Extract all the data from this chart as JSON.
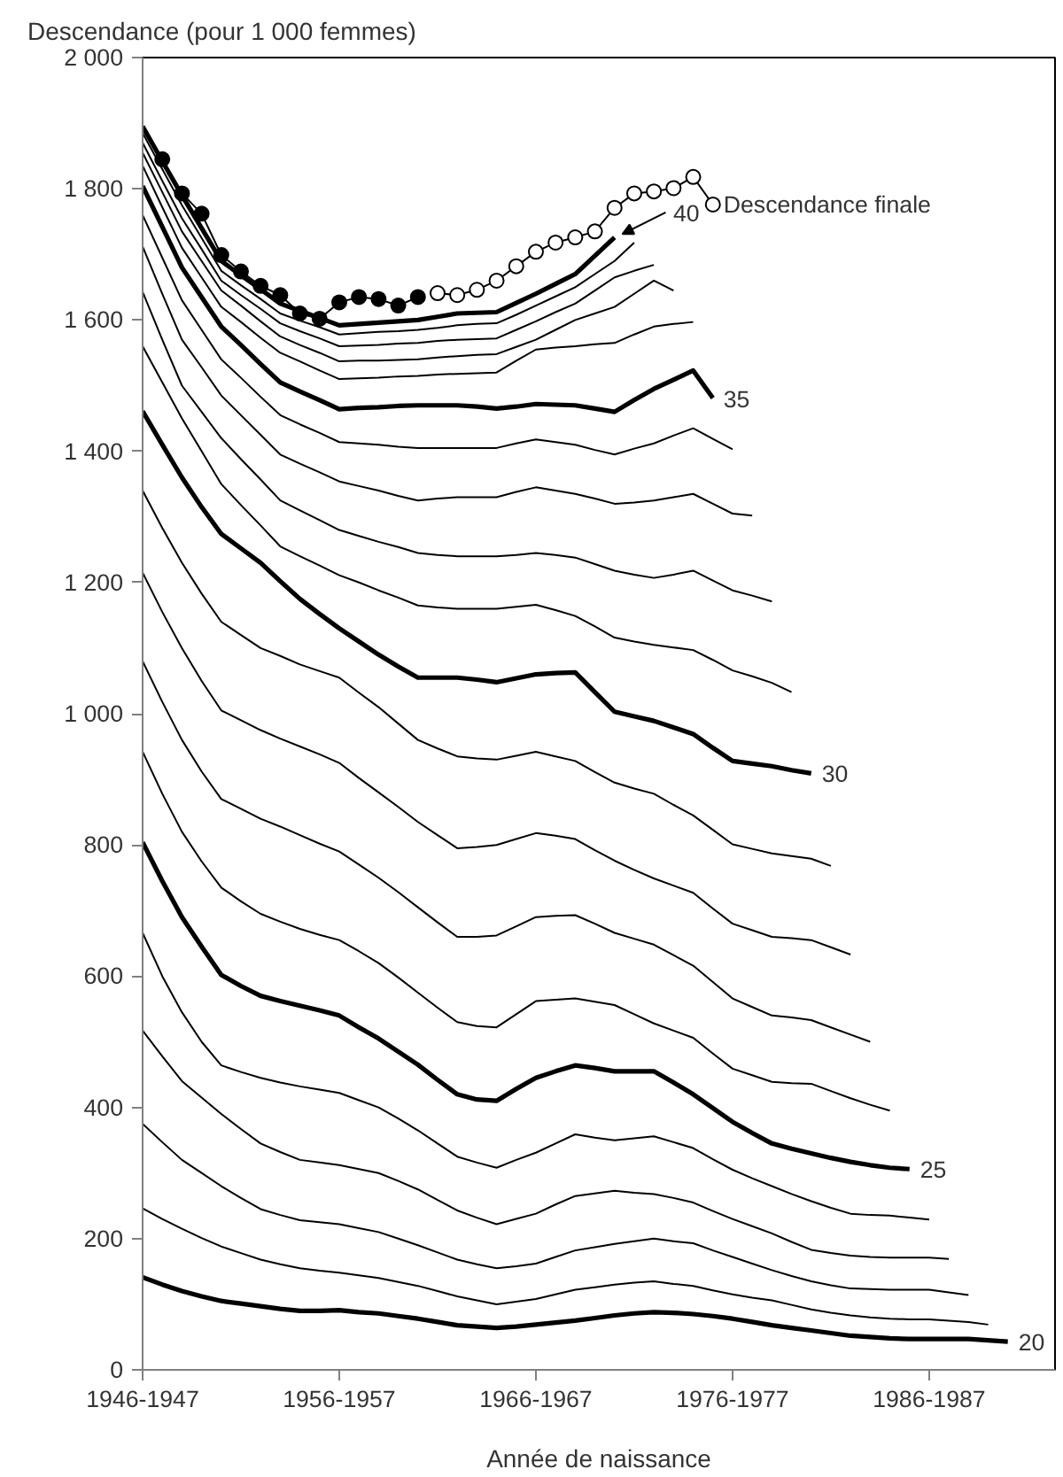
{
  "chart_data": {
    "type": "line",
    "xlabel": "Année de naissance",
    "ylabel": "Descendance (pour 1 000 femmes)",
    "categories": [
      "1946-1947",
      null,
      null,
      null,
      null,
      null,
      null,
      null,
      null,
      null,
      "1956-1957",
      null,
      null,
      null,
      null,
      null,
      null,
      null,
      null,
      null,
      "1966-1967",
      null,
      null,
      null,
      null,
      null,
      null,
      null,
      null,
      null,
      "1976-1977",
      null,
      null,
      null,
      null,
      null,
      null,
      null,
      null,
      null,
      "1986-1987",
      null,
      null,
      null,
      null
    ],
    "ylim": [
      0,
      2000
    ],
    "yticks": [
      0,
      200,
      400,
      600,
      800,
      {
        "value": 1000,
        "label": "1 000"
      },
      {
        "value": 1200,
        "label": "1 200"
      },
      {
        "value": 1400,
        "label": "1 400"
      },
      {
        "value": 1600,
        "label": "1 600"
      },
      {
        "value": 1800,
        "label": "1 800"
      },
      {
        "value": 2000,
        "label": "2 000"
      }
    ],
    "grid": false,
    "marker": "none",
    "line_style": "solid",
    "series": [
      {
        "name": "20",
        "color": "#000000",
        "values": [
          141,
          130,
          120,
          112,
          105,
          101,
          97,
          93,
          90,
          90,
          91,
          88,
          86,
          82,
          78,
          73,
          68,
          66,
          64,
          66,
          69,
          72,
          75,
          79,
          83,
          86,
          88,
          87,
          85,
          82,
          78,
          73,
          68,
          64,
          60,
          56,
          52,
          50,
          48,
          47,
          47,
          47,
          47,
          45,
          43
        ]
      },
      {
        "color": "#000000",
        "values": [
          246,
          230,
          215,
          201,
          188,
          178,
          168,
          161,
          155,
          151,
          148,
          144,
          140,
          134,
          128,
          120,
          112,
          106,
          100,
          104,
          108,
          115,
          122,
          126,
          130,
          133,
          135,
          131,
          128,
          121,
          115,
          110,
          106,
          99,
          92,
          87,
          83,
          80,
          78,
          77,
          77,
          75,
          73,
          69,
          null
        ]
      },
      {
        "color": "#000000",
        "values": [
          375,
          347,
          320,
          300,
          280,
          262,
          245,
          236,
          228,
          225,
          222,
          216,
          210,
          200,
          190,
          179,
          168,
          161,
          155,
          158,
          162,
          172,
          182,
          187,
          192,
          196,
          200,
          196,
          193,
          182,
          172,
          162,
          152,
          143,
          135,
          129,
          124,
          123,
          122,
          122,
          122,
          118,
          114,
          null,
          null
        ]
      },
      {
        "color": "#000000",
        "values": [
          517,
          478,
          440,
          415,
          390,
          367,
          345,
          332,
          320,
          316,
          312,
          306,
          300,
          288,
          275,
          259,
          243,
          232,
          222,
          230,
          238,
          252,
          265,
          269,
          273,
          270,
          268,
          262,
          255,
          242,
          230,
          219,
          208,
          195,
          183,
          178,
          174,
          172,
          171,
          171,
          171,
          169,
          null,
          null,
          null
        ]
      },
      {
        "color": "#000000",
        "values": [
          666,
          600,
          545,
          500,
          464,
          454,
          445,
          438,
          432,
          427,
          422,
          411,
          400,
          383,
          365,
          345,
          325,
          316,
          308,
          320,
          331,
          345,
          359,
          354,
          350,
          353,
          356,
          347,
          338,
          321,
          305,
          292,
          280,
          268,
          257,
          247,
          238,
          236,
          235,
          232,
          229,
          null,
          null,
          null,
          null
        ]
      },
      {
        "name": "25",
        "color": "#000000",
        "values": [
          804,
          745,
          690,
          645,
          602,
          585,
          570,
          562,
          555,
          548,
          540,
          522,
          505,
          485,
          465,
          442,
          420,
          412,
          410,
          428,
          445,
          455,
          464,
          460,
          455,
          455,
          455,
          438,
          420,
          399,
          378,
          361,
          345,
          337,
          330,
          323,
          317,
          312,
          308,
          306,
          null,
          null,
          null,
          null,
          null
        ]
      },
      {
        "color": "#000000",
        "values": [
          942,
          878,
          820,
          775,
          735,
          714,
          695,
          683,
          672,
          663,
          655,
          638,
          620,
          598,
          575,
          552,
          530,
          524,
          522,
          542,
          562,
          564,
          566,
          561,
          556,
          542,
          528,
          517,
          506,
          482,
          459,
          449,
          439,
          437,
          436,
          425,
          414,
          404,
          395,
          null,
          null,
          null,
          null,
          null,
          null
        ]
      },
      {
        "color": "#000000",
        "values": [
          1080,
          1018,
          960,
          912,
          870,
          855,
          840,
          828,
          815,
          802,
          790,
          770,
          750,
          728,
          705,
          682,
          660,
          660,
          662,
          676,
          690,
          692,
          693,
          680,
          666,
          657,
          648,
          632,
          616,
          591,
          566,
          553,
          540,
          537,
          533,
          522,
          511,
          500,
          null,
          null,
          null,
          null,
          null,
          null,
          null
        ]
      },
      {
        "color": "#000000",
        "values": [
          1215,
          1155,
          1100,
          1050,
          1005,
          990,
          975,
          962,
          950,
          938,
          925,
          902,
          880,
          858,
          835,
          815,
          795,
          797,
          800,
          809,
          818,
          814,
          809,
          792,
          776,
          762,
          749,
          738,
          727,
          703,
          680,
          670,
          660,
          658,
          655,
          644,
          633,
          null,
          null,
          null,
          null,
          null,
          null,
          null,
          null
        ]
      },
      {
        "color": "#000000",
        "values": [
          1340,
          1283,
          1230,
          1183,
          1140,
          1120,
          1100,
          1088,
          1075,
          1065,
          1055,
          1032,
          1010,
          985,
          960,
          947,
          935,
          932,
          930,
          936,
          942,
          935,
          928,
          911,
          895,
          886,
          878,
          861,
          845,
          823,
          801,
          794,
          787,
          783,
          779,
          768,
          null,
          null,
          null,
          null,
          null,
          null,
          null,
          null,
          null
        ]
      },
      {
        "name": "30",
        "color": "#000000",
        "values": [
          1461,
          1410,
          1360,
          1315,
          1274,
          1252,
          1230,
          1202,
          1175,
          1152,
          1130,
          1110,
          1090,
          1072,
          1055,
          1055,
          1055,
          1052,
          1048,
          1054,
          1060,
          1062,
          1063,
          1033,
          1003,
          996,
          989,
          979,
          969,
          948,
          928,
          924,
          920,
          914,
          909,
          null,
          null,
          null,
          null,
          null,
          null,
          null,
          null,
          null,
          null
        ]
      },
      {
        "color": "#000000",
        "values": [
          1560,
          1505,
          1450,
          1400,
          1350,
          1318,
          1287,
          1255,
          1240,
          1226,
          1211,
          1200,
          1188,
          1177,
          1165,
          1162,
          1160,
          1160,
          1160,
          1163,
          1166,
          1158,
          1149,
          1133,
          1116,
          1110,
          1105,
          1101,
          1097,
          1082,
          1066,
          1057,
          1047,
          1033,
          null,
          null,
          null,
          null,
          null,
          null,
          null,
          null,
          null,
          null,
          null
        ]
      },
      {
        "color": "#000000",
        "values": [
          1643,
          1570,
          1500,
          1460,
          1420,
          1388,
          1357,
          1325,
          1310,
          1295,
          1280,
          1271,
          1262,
          1254,
          1245,
          1242,
          1240,
          1240,
          1240,
          1242,
          1245,
          1242,
          1238,
          1228,
          1218,
          1212,
          1207,
          1212,
          1218,
          1203,
          1188,
          1180,
          1171,
          null,
          null,
          null,
          null,
          null,
          null,
          null,
          null,
          null,
          null,
          null,
          null
        ]
      },
      {
        "color": "#000000",
        "values": [
          1712,
          1640,
          1570,
          1528,
          1485,
          1455,
          1425,
          1395,
          1381,
          1368,
          1354,
          1347,
          1340,
          1332,
          1325,
          1328,
          1330,
          1330,
          1330,
          1338,
          1345,
          1340,
          1335,
          1328,
          1320,
          1322,
          1325,
          1330,
          1335,
          1320,
          1305,
          1302,
          null,
          null,
          null,
          null,
          null,
          null,
          null,
          null,
          null,
          null,
          null,
          null,
          null
        ]
      },
      {
        "color": "#000000",
        "values": [
          1760,
          1695,
          1630,
          1585,
          1540,
          1512,
          1483,
          1455,
          1441,
          1428,
          1414,
          1412,
          1410,
          1407,
          1405,
          1405,
          1405,
          1405,
          1405,
          1412,
          1418,
          1414,
          1410,
          1402,
          1395,
          1404,
          1412,
          1424,
          1435,
          1419,
          1403,
          null,
          null,
          null,
          null,
          null,
          null,
          null,
          null,
          null,
          null,
          null,
          null,
          null,
          null
        ]
      },
      {
        "name": "35",
        "color": "#000000",
        "values": [
          1804,
          1742,
          1680,
          1635,
          1590,
          1562,
          1533,
          1505,
          1491,
          1478,
          1464,
          1466,
          1467,
          1469,
          1470,
          1470,
          1470,
          1468,
          1465,
          1468,
          1472,
          1471,
          1470,
          1465,
          1460,
          1478,
          1495,
          1509,
          1523,
          1481,
          null,
          null,
          null,
          null,
          null,
          null,
          null,
          null,
          null,
          null,
          null,
          null,
          null,
          null,
          null
        ]
      },
      {
        "color": "#000000",
        "values": [
          1835,
          1772,
          1710,
          1665,
          1620,
          1597,
          1573,
          1550,
          1537,
          1523,
          1510,
          1511,
          1512,
          1514,
          1515,
          1517,
          1518,
          1519,
          1520,
          1538,
          1555,
          1558,
          1560,
          1563,
          1565,
          1578,
          1590,
          1594,
          1597,
          null,
          null,
          null,
          null,
          null,
          null,
          null,
          null,
          null,
          null,
          null,
          null,
          null,
          null,
          null,
          null
        ]
      },
      {
        "color": "#000000",
        "values": [
          1855,
          1795,
          1735,
          1690,
          1645,
          1622,
          1598,
          1575,
          1562,
          1550,
          1537,
          1538,
          1538,
          1539,
          1540,
          1543,
          1545,
          1547,
          1548,
          1559,
          1570,
          1585,
          1600,
          1610,
          1620,
          1640,
          1660,
          1645,
          null,
          null,
          null,
          null,
          null,
          null,
          null,
          null,
          null,
          null,
          null,
          null,
          null,
          null,
          null,
          null,
          null
        ]
      },
      {
        "color": "#000000",
        "values": [
          1870,
          1812,
          1755,
          1708,
          1660,
          1638,
          1617,
          1595,
          1583,
          1572,
          1560,
          1561,
          1562,
          1564,
          1565,
          1568,
          1570,
          1571,
          1572,
          1585,
          1598,
          1612,
          1625,
          1645,
          1665,
          1675,
          1684,
          null,
          null,
          null,
          null,
          null,
          null,
          null,
          null,
          null,
          null,
          null,
          null,
          null,
          null,
          null,
          null,
          null,
          null
        ]
      },
      {
        "color": "#000000",
        "values": [
          1885,
          1830,
          1775,
          1725,
          1675,
          1653,
          1632,
          1610,
          1599,
          1589,
          1578,
          1580,
          1582,
          1583,
          1585,
          1588,
          1592,
          1594,
          1595,
          1608,
          1622,
          1636,
          1650,
          1670,
          1690,
          1718,
          null,
          null,
          null,
          null,
          null,
          null,
          null,
          null,
          null,
          null,
          null,
          null,
          null,
          null,
          null,
          null,
          null,
          null,
          null
        ]
      },
      {
        "name": "40",
        "color": "#000000",
        "values": [
          1895,
          1842,
          1790,
          1740,
          1690,
          1668,
          1647,
          1625,
          1614,
          1603,
          1592,
          1594,
          1596,
          1598,
          1600,
          1605,
          1610,
          1611,
          1612,
          1626,
          1640,
          1655,
          1670,
          1698,
          1726,
          null,
          null,
          null,
          null,
          null,
          null,
          null,
          null,
          null,
          null,
          null,
          null,
          null,
          null,
          null,
          null,
          null,
          null,
          null,
          null
        ]
      },
      {
        "color": "#000000",
        "marker": "circle",
        "values": [
          null,
          1845,
          1793,
          1762,
          1699,
          1674,
          1652,
          1638,
          1610,
          1602,
          1627,
          1635,
          1632,
          1622,
          1635,
          null,
          null,
          null,
          null,
          null,
          null,
          null,
          null,
          null,
          null,
          null,
          null,
          null,
          null,
          null,
          null,
          null,
          null,
          null,
          null,
          null,
          null,
          null,
          null,
          null,
          null,
          null,
          null,
          null,
          null
        ]
      },
      {
        "name": "Descendance finale",
        "color": "#ffffff",
        "marker": "circle",
        "values": [
          null,
          null,
          null,
          null,
          null,
          null,
          null,
          null,
          null,
          null,
          null,
          null,
          null,
          null,
          null,
          1641,
          1638,
          1646,
          1660,
          1682,
          1704,
          1718,
          1726,
          1735,
          1771,
          1793,
          1796,
          1801,
          1818,
          1776,
          null,
          null,
          null,
          null,
          null,
          null,
          null,
          null,
          null,
          null,
          null,
          null,
          null,
          null,
          null
        ]
      }
    ]
  }
}
